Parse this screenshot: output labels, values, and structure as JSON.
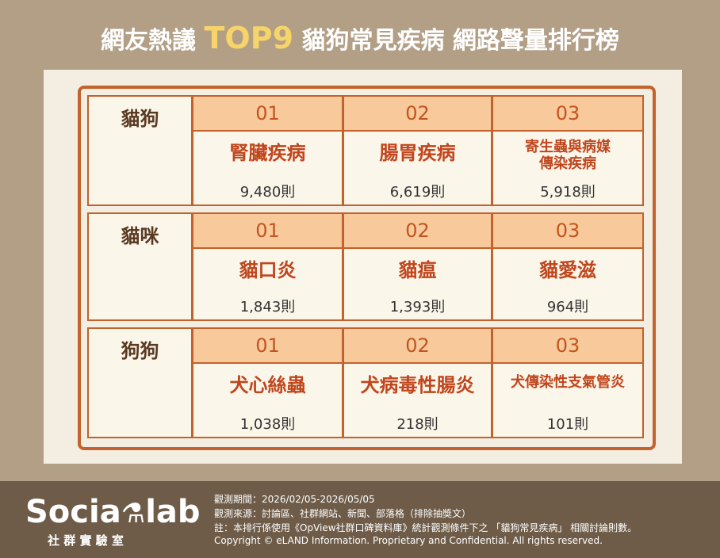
{
  "header": {
    "title_prefix": "網友熱議",
    "title_highlight": "TOP9",
    "title_suffix": "貓狗常見疾病 網路聲量排行榜"
  },
  "groups": [
    {
      "label": "貓狗",
      "items": [
        {
          "rank": "01",
          "name": "腎臟疾病",
          "count": "9,480則"
        },
        {
          "rank": "02",
          "name": "腸胃疾病",
          "count": "6,619則"
        },
        {
          "rank": "03",
          "name": "寄生蟲與病媒傳染疾病",
          "count": "5,918則"
        }
      ]
    },
    {
      "label": "貓咪",
      "items": [
        {
          "rank": "01",
          "name": "貓口炎",
          "count": "1,843則"
        },
        {
          "rank": "02",
          "name": "貓瘟",
          "count": "1,393則"
        },
        {
          "rank": "03",
          "name": "貓愛滋",
          "count": "964則"
        }
      ]
    },
    {
      "label": "狗狗",
      "items": [
        {
          "rank": "01",
          "name": "犬心絲蟲",
          "count": "1,038則"
        },
        {
          "rank": "02",
          "name": "犬病毒性腸炎",
          "count": "218則"
        },
        {
          "rank": "03",
          "name": "犬傳染性支氣管炎",
          "count": "101則"
        }
      ]
    }
  ],
  "footer": {
    "brand_left": "Socia",
    "brand_right": "lab",
    "brand_sub": "社 群 實 驗 室",
    "notes": [
      "觀測期間：2026/02/05-2026/05/05",
      "觀測來源：討論區、社群網站、新聞、部落格（排除抽獎文）",
      "註：本排行係使用《OpView社群口碑資料庫》統計觀測條件下之 「貓狗常見疾病」 相關討論則數。",
      "Copyright © eLAND Information. Proprietary and Confidential. All rights reserved."
    ]
  }
}
